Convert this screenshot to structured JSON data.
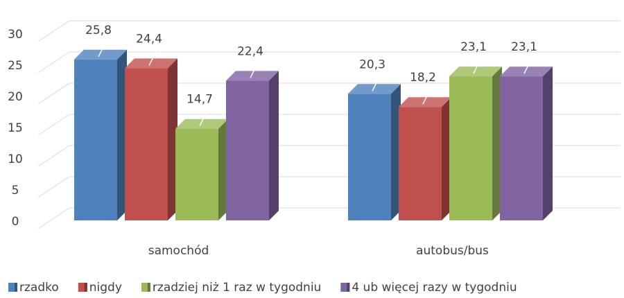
{
  "chart_data": {
    "type": "bar3d",
    "categories": [
      "samochód",
      "autobus/bus"
    ],
    "series": [
      {
        "name": "rzadko",
        "color": "#4f81bd",
        "values": [
          25.8,
          20.3
        ],
        "value_labels": [
          "25,8",
          "20,3"
        ]
      },
      {
        "name": "nigdy",
        "color": "#c0504d",
        "values": [
          24.4,
          18.2
        ],
        "value_labels": [
          "24,4",
          "18,2"
        ]
      },
      {
        "name": "rzadziej niż 1 raz w tygodniu",
        "color": "#9bbb59",
        "values": [
          14.7,
          23.1
        ],
        "value_labels": [
          "14,7",
          "23,1"
        ]
      },
      {
        "name": "4 ub więcej razy w tygodniu",
        "color": "#8064a2",
        "values": [
          22.4,
          23.1
        ],
        "value_labels": [
          "22,4",
          "23,1"
        ]
      }
    ],
    "ylim": [
      0,
      30
    ],
    "yticks": [
      0,
      5,
      10,
      15,
      20,
      25,
      30
    ],
    "grid": true,
    "legend": "bottom"
  }
}
